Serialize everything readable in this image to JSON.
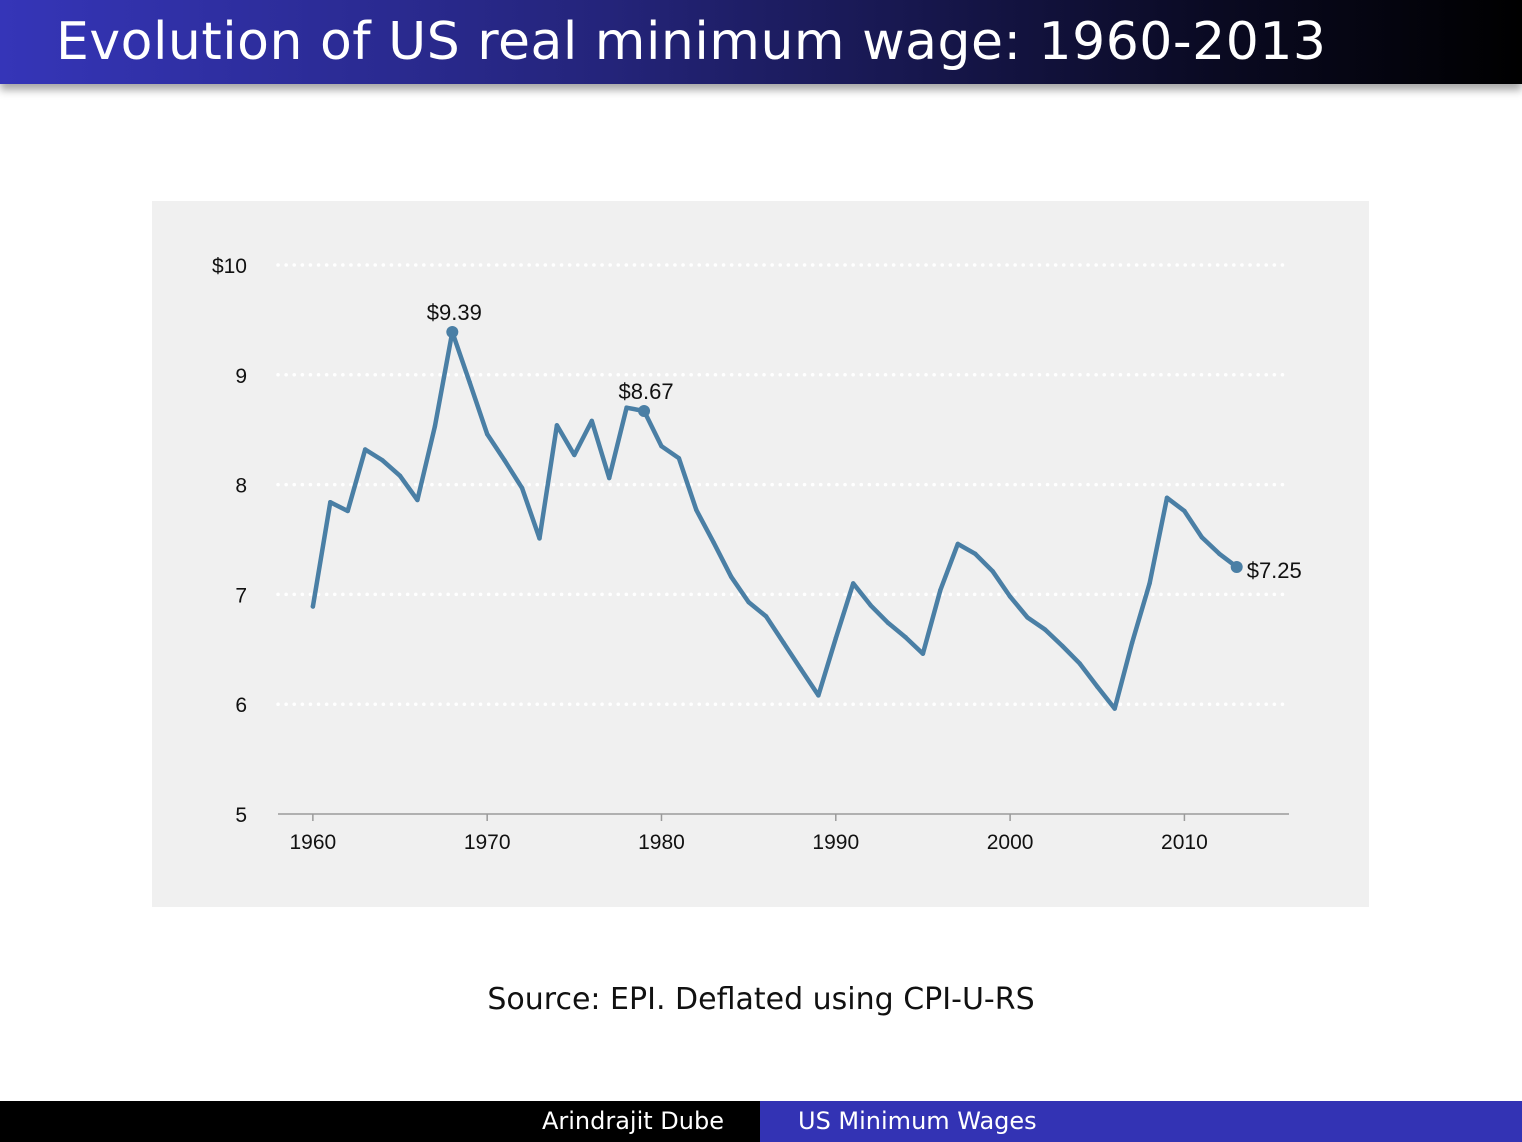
{
  "slide": {
    "title": "Evolution of US real minimum wage: 1960-2013",
    "source": "Source: EPI. Deflated using CPI-U-RS"
  },
  "footer": {
    "author": "Arindrajit Dube",
    "talk_title": "US Minimum Wages"
  },
  "colors": {
    "line": "#4a7fa5",
    "panel": "#f0f0f0",
    "grid": "#ffffff"
  },
  "chart_data": {
    "type": "line",
    "title": "",
    "xlabel": "",
    "ylabel": "",
    "xlim": [
      1958,
      2016
    ],
    "ylim": [
      5,
      10
    ],
    "grid": "horizontal dotted",
    "x_ticks": [
      1960,
      1970,
      1980,
      1990,
      2000,
      2010
    ],
    "y_ticks": [
      {
        "value": 10,
        "label": "$10"
      },
      {
        "value": 9,
        "label": "9"
      },
      {
        "value": 8,
        "label": "8"
      },
      {
        "value": 7,
        "label": "7"
      },
      {
        "value": 6,
        "label": "6"
      },
      {
        "value": 5,
        "label": "5"
      }
    ],
    "series": [
      {
        "x": [
          1960,
          1961,
          1962,
          1963,
          1964,
          1965,
          1966,
          1967,
          1968,
          1969,
          1970,
          1971,
          1972,
          1973,
          1974,
          1975,
          1976,
          1977,
          1978,
          1979,
          1980,
          1981,
          1982,
          1983,
          1984,
          1985,
          1986,
          1987,
          1988,
          1989,
          1990,
          1991,
          1992,
          1993,
          1994,
          1995,
          1996,
          1997,
          1998,
          1999,
          2000,
          2001,
          2002,
          2003,
          2004,
          2005,
          2006,
          2007,
          2008,
          2009,
          2010,
          2011,
          2012,
          2013
        ],
        "values": [
          6.89,
          7.84,
          7.76,
          8.32,
          8.22,
          8.08,
          7.86,
          8.53,
          9.39,
          8.93,
          8.46,
          8.22,
          7.97,
          7.51,
          8.54,
          8.27,
          8.58,
          8.06,
          8.7,
          8.67,
          8.35,
          8.24,
          7.77,
          7.47,
          7.16,
          6.93,
          6.8,
          6.56,
          6.32,
          6.08,
          6.6,
          7.1,
          6.9,
          6.74,
          6.61,
          6.46,
          7.04,
          7.46,
          7.37,
          7.21,
          6.98,
          6.79,
          6.68,
          6.53,
          6.37,
          6.16,
          5.96,
          6.56,
          7.1,
          7.88,
          7.76,
          7.52,
          7.37,
          7.25
        ]
      }
    ],
    "annotations": [
      {
        "x": 1968,
        "y": 9.39,
        "label": "$9.39",
        "position": "above"
      },
      {
        "x": 1979,
        "y": 8.67,
        "label": "$8.67",
        "position": "above"
      },
      {
        "x": 2013,
        "y": 7.25,
        "label": "$7.25",
        "position": "right"
      }
    ]
  }
}
